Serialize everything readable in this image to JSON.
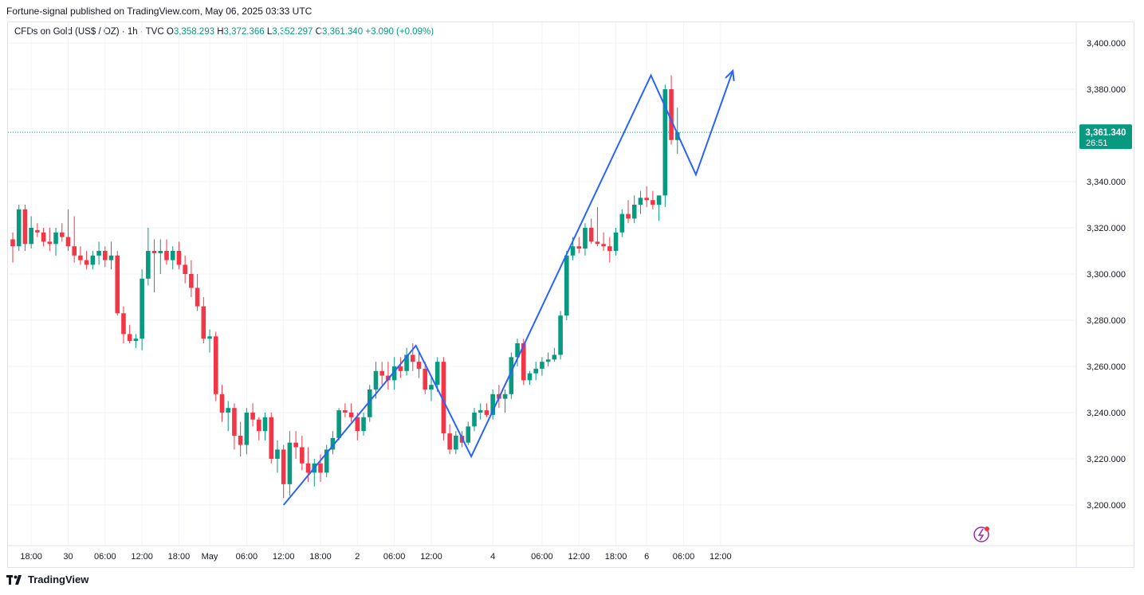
{
  "header": {
    "published": "Fortune-signal published on TradingView.com, May 06, 2025 03:33 UTC"
  },
  "legend": {
    "symbol": "CFDs on Gold (US$ / OZ) · 1h · TVC",
    "o_label": "O",
    "o": "3,358.293",
    "h_label": "H",
    "h": "3,372.366",
    "l_label": "L",
    "l": "3,352.297",
    "c_label": "C",
    "c": "3,361.340",
    "change": "+3.090 (+0.09%)"
  },
  "price_tag": {
    "price": "3,361.340",
    "countdown": "26:51"
  },
  "footer": {
    "brand": "TradingView"
  },
  "colors": {
    "up": "#089981",
    "down": "#f23645",
    "drawing": "#2962ff",
    "last_price": "#089981"
  },
  "chart_data": {
    "type": "candlestick",
    "title": "CFDs on Gold (US$ / OZ) · 1h · TVC",
    "ylim": [
      3180,
      3410
    ],
    "y_ticks": [
      3200,
      3220,
      3240,
      3260,
      3280,
      3300,
      3320,
      3340,
      3360,
      3380,
      3400
    ],
    "y_tick_labels": [
      "3,200.000",
      "3,220.000",
      "3,240.000",
      "3,260.000",
      "3,280.000",
      "3,300.000",
      "3,320.000",
      "3,340.000",
      "3,360.000",
      "3,380.000",
      "3,400.000"
    ],
    "x_ticks": [
      {
        "label": "18:00",
        "index": 3
      },
      {
        "label": "30",
        "index": 9
      },
      {
        "label": "06:00",
        "index": 15
      },
      {
        "label": "12:00",
        "index": 21
      },
      {
        "label": "18:00",
        "index": 27
      },
      {
        "label": "May",
        "index": 32
      },
      {
        "label": "06:00",
        "index": 38
      },
      {
        "label": "12:00",
        "index": 44
      },
      {
        "label": "18:00",
        "index": 50
      },
      {
        "label": "2",
        "index": 56
      },
      {
        "label": "06:00",
        "index": 62
      },
      {
        "label": "12:00",
        "index": 68
      },
      {
        "label": "4",
        "index": 78
      },
      {
        "label": "06:00",
        "index": 86
      },
      {
        "label": "12:00",
        "index": 92
      },
      {
        "label": "18:00",
        "index": 98
      },
      {
        "label": "6",
        "index": 103
      },
      {
        "label": "06:00",
        "index": 109
      },
      {
        "label": "12:00",
        "index": 115
      }
    ],
    "last_price": 3361.34,
    "candles": [
      [
        3315,
        3318,
        3305,
        3312
      ],
      [
        3312,
        3330,
        3310,
        3328
      ],
      [
        3328,
        3330,
        3310,
        3313
      ],
      [
        3313,
        3325,
        3311,
        3320
      ],
      [
        3319,
        3322,
        3316,
        3318
      ],
      [
        3318,
        3320,
        3312,
        3314
      ],
      [
        3314,
        3320,
        3310,
        3313
      ],
      [
        3313,
        3320,
        3308,
        3318
      ],
      [
        3318,
        3322,
        3314,
        3316
      ],
      [
        3316,
        3328,
        3310,
        3312
      ],
      [
        3312,
        3325,
        3305,
        3308
      ],
      [
        3308,
        3312,
        3304,
        3306
      ],
      [
        3306,
        3310,
        3302,
        3304
      ],
      [
        3304,
        3310,
        3302,
        3308
      ],
      [
        3308,
        3314,
        3304,
        3310
      ],
      [
        3310,
        3312,
        3303,
        3306
      ],
      [
        3306,
        3314,
        3302,
        3308
      ],
      [
        3308,
        3310,
        3282,
        3283
      ],
      [
        3283,
        3286,
        3270,
        3274
      ],
      [
        3274,
        3278,
        3270,
        3271
      ],
      [
        3271,
        3274,
        3268,
        3272
      ],
      [
        3272,
        3302,
        3267,
        3298
      ],
      [
        3298,
        3320,
        3295,
        3310
      ],
      [
        3310,
        3315,
        3292,
        3309
      ],
      [
        3309,
        3315,
        3300,
        3310
      ],
      [
        3310,
        3315,
        3304,
        3306
      ],
      [
        3306,
        3312,
        3302,
        3310
      ],
      [
        3310,
        3314,
        3302,
        3304
      ],
      [
        3304,
        3308,
        3296,
        3300
      ],
      [
        3300,
        3306,
        3290,
        3294
      ],
      [
        3294,
        3300,
        3284,
        3286
      ],
      [
        3286,
        3290,
        3270,
        3272
      ],
      [
        3272,
        3276,
        3266,
        3273
      ],
      [
        3273,
        3275,
        3245,
        3248
      ],
      [
        3248,
        3252,
        3236,
        3240
      ],
      [
        3240,
        3245,
        3232,
        3242
      ],
      [
        3242,
        3244,
        3224,
        3230
      ],
      [
        3230,
        3236,
        3221,
        3226
      ],
      [
        3226,
        3242,
        3222,
        3240
      ],
      [
        3240,
        3244,
        3234,
        3237
      ],
      [
        3237,
        3238,
        3228,
        3232
      ],
      [
        3232,
        3240,
        3228,
        3238
      ],
      [
        3238,
        3240,
        3218,
        3220
      ],
      [
        3220,
        3228,
        3214,
        3224
      ],
      [
        3224,
        3226,
        3203,
        3209
      ],
      [
        3209,
        3232,
        3204,
        3227
      ],
      [
        3227,
        3232,
        3220,
        3225
      ],
      [
        3225,
        3230,
        3215,
        3218
      ],
      [
        3218,
        3225,
        3210,
        3214
      ],
      [
        3214,
        3220,
        3208,
        3218
      ],
      [
        3218,
        3222,
        3210,
        3214
      ],
      [
        3214,
        3226,
        3212,
        3224
      ],
      [
        3224,
        3232,
        3222,
        3229
      ],
      [
        3229,
        3242,
        3228,
        3241
      ],
      [
        3241,
        3244,
        3238,
        3240
      ],
      [
        3240,
        3244,
        3236,
        3238
      ],
      [
        3238,
        3240,
        3228,
        3232
      ],
      [
        3232,
        3240,
        3230,
        3238
      ],
      [
        3238,
        3252,
        3236,
        3250
      ],
      [
        3250,
        3262,
        3246,
        3258
      ],
      [
        3258,
        3262,
        3252,
        3256
      ],
      [
        3256,
        3262,
        3250,
        3254
      ],
      [
        3254,
        3264,
        3250,
        3260
      ],
      [
        3260,
        3264,
        3255,
        3258
      ],
      [
        3258,
        3268,
        3256,
        3265
      ],
      [
        3265,
        3270,
        3258,
        3262
      ],
      [
        3262,
        3266,
        3255,
        3259
      ],
      [
        3259,
        3262,
        3248,
        3250
      ],
      [
        3250,
        3256,
        3245,
        3252
      ],
      [
        3252,
        3264,
        3249,
        3262
      ],
      [
        3262,
        3264,
        3228,
        3231
      ],
      [
        3231,
        3235,
        3222,
        3224
      ],
      [
        3224,
        3232,
        3222,
        3230
      ],
      [
        3230,
        3232,
        3225,
        3227
      ],
      [
        3227,
        3236,
        3226,
        3234
      ],
      [
        3234,
        3242,
        3232,
        3240
      ],
      [
        3240,
        3244,
        3237,
        3241
      ],
      [
        3241,
        3244,
        3238,
        3239
      ],
      [
        3239,
        3250,
        3237,
        3248
      ],
      [
        3248,
        3252,
        3242,
        3246
      ],
      [
        3246,
        3250,
        3240,
        3248
      ],
      [
        3248,
        3266,
        3246,
        3264
      ],
      [
        3264,
        3272,
        3260,
        3270
      ],
      [
        3270,
        3272,
        3252,
        3254
      ],
      [
        3254,
        3258,
        3252,
        3257
      ],
      [
        3257,
        3262,
        3254,
        3259
      ],
      [
        3259,
        3264,
        3256,
        3262
      ],
      [
        3262,
        3266,
        3260,
        3263
      ],
      [
        3263,
        3268,
        3262,
        3265
      ],
      [
        3265,
        3284,
        3263,
        3282
      ],
      [
        3282,
        3310,
        3280,
        3308
      ],
      [
        3308,
        3316,
        3306,
        3312
      ],
      [
        3312,
        3316,
        3309,
        3311
      ],
      [
        3311,
        3322,
        3308,
        3320
      ],
      [
        3320,
        3324,
        3313,
        3314
      ],
      [
        3314,
        3329,
        3312,
        3313
      ],
      [
        3313,
        3318,
        3310,
        3312
      ],
      [
        3312,
        3316,
        3305,
        3310
      ],
      [
        3310,
        3320,
        3308,
        3318
      ],
      [
        3318,
        3328,
        3316,
        3326
      ],
      [
        3326,
        3332,
        3322,
        3324
      ],
      [
        3324,
        3334,
        3322,
        3330
      ],
      [
        3330,
        3336,
        3326,
        3333
      ],
      [
        3333,
        3338,
        3329,
        3332
      ],
      [
        3332,
        3336,
        3328,
        3330
      ],
      [
        3330,
        3334,
        3323,
        3334
      ],
      [
        3334,
        3382,
        3329,
        3380
      ],
      [
        3380,
        3386,
        3356,
        3358
      ],
      [
        3358,
        3372,
        3352,
        3361.34
      ]
    ],
    "drawing_polyline": [
      {
        "index": 44,
        "price": 3200
      },
      {
        "index": 65.5,
        "price": 3269
      },
      {
        "index": 74.5,
        "price": 3221
      },
      {
        "index": 103.7,
        "price": 3386
      },
      {
        "index": 111,
        "price": 3343
      },
      {
        "index": 117,
        "price": 3388
      }
    ]
  }
}
